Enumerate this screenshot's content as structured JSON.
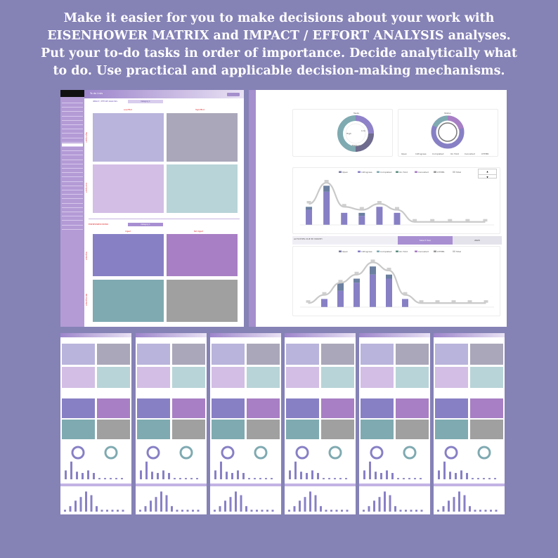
{
  "headline": {
    "line1": "Make it easier for you to make decisions about your work with",
    "line2": "EISENHOWER MATRIX and IMPACT / EFFORT ANALYSIS analyses.",
    "line3": "Put your to-do tasks in order of importance. Decide analytically what",
    "line4": "to do. Use practical and applicable decision-making mechanisms."
  },
  "colors": {
    "background": "#8582b6",
    "sidebar": "#b49bd6",
    "q_low_effort_high_impact": "#b8b4dc",
    "q_high_effort_high_impact": "#aaa7ba",
    "q_low_effort_low_impact": "#d3bee5",
    "q_high_effort_low_impact": "#b8d4d8",
    "e_urgent_important": "#8780c5",
    "e_not_urgent_important": "#a87fc4",
    "e_urgent_not_important": "#7faab1",
    "e_not_urgent_not_important": "#a0a0a0"
  },
  "sheet1": {
    "title": "To do Lists",
    "impact_label": "IMPACT / EFFORT ANALYSIS",
    "category1": "Category 1",
    "eisenhower_label": "EISENHOWER MATRIX",
    "category2": "Category 1",
    "low_effort": "Low Effort",
    "high_effort": "High Effort",
    "high_impact": "High Impact",
    "low_impact": "Low Impact",
    "urgent": "Urgent",
    "not_urgent": "Not Urgent",
    "important": "Important",
    "not_important": "Not Important",
    "sidebar_items": [
      "",
      "",
      "",
      "",
      "",
      "",
      "",
      "",
      "",
      "",
      "",
      "",
      "",
      "",
      "",
      "",
      "",
      "",
      "",
      "",
      "",
      "",
      "",
      "",
      "",
      "",
      "",
      "",
      "",
      ""
    ]
  },
  "sheet2": {
    "donut1_title": "Tasks",
    "donut1_labels": [
      "High",
      "Low",
      "Medium"
    ],
    "donut2_title": "Status",
    "status_legend": [
      "Open",
      "InProgress",
      "Completed",
      "On Hold",
      "Cancelled",
      "OTHER"
    ],
    "total_label": "Total",
    "by_month_label": "ACTIVITIES DUE BY MONTH",
    "select_year_label": "Select Year",
    "year_value": "2023"
  },
  "chart_data": [
    {
      "type": "bar",
      "title": "",
      "categories": [
        "c1",
        "c2",
        "c3",
        "c4",
        "c5",
        "c6",
        "c7",
        "c8",
        "c9",
        "c10",
        "c11"
      ],
      "series": [
        {
          "name": "InProgress",
          "values": [
            5,
            11,
            4,
            3,
            6,
            4,
            0,
            0,
            0,
            0,
            0
          ]
        },
        {
          "name": "Completed",
          "values": [
            1,
            2,
            0,
            1,
            0,
            0,
            0,
            0,
            0,
            0,
            0
          ]
        },
        {
          "name": "Total",
          "values": [
            7,
            14,
            6,
            5,
            7,
            5,
            1,
            1,
            1,
            1,
            1
          ]
        }
      ],
      "legend": "top"
    },
    {
      "type": "bar",
      "title": "",
      "categories": [
        "m1",
        "m2",
        "m3",
        "m4",
        "m5",
        "m6",
        "m7",
        "m8",
        "m9",
        "m10",
        "m11",
        "m12"
      ],
      "series": [
        {
          "name": "InProgress",
          "values": [
            0,
            2,
            4,
            6,
            8,
            7,
            2,
            0,
            0,
            0,
            0,
            0
          ]
        },
        {
          "name": "Completed",
          "values": [
            0,
            0,
            2,
            1,
            2,
            1,
            0,
            0,
            0,
            0,
            0,
            0
          ]
        },
        {
          "name": "Total",
          "values": [
            1,
            3,
            6,
            8,
            11,
            9,
            3,
            1,
            1,
            1,
            1,
            1
          ]
        }
      ],
      "legend": "top"
    }
  ]
}
